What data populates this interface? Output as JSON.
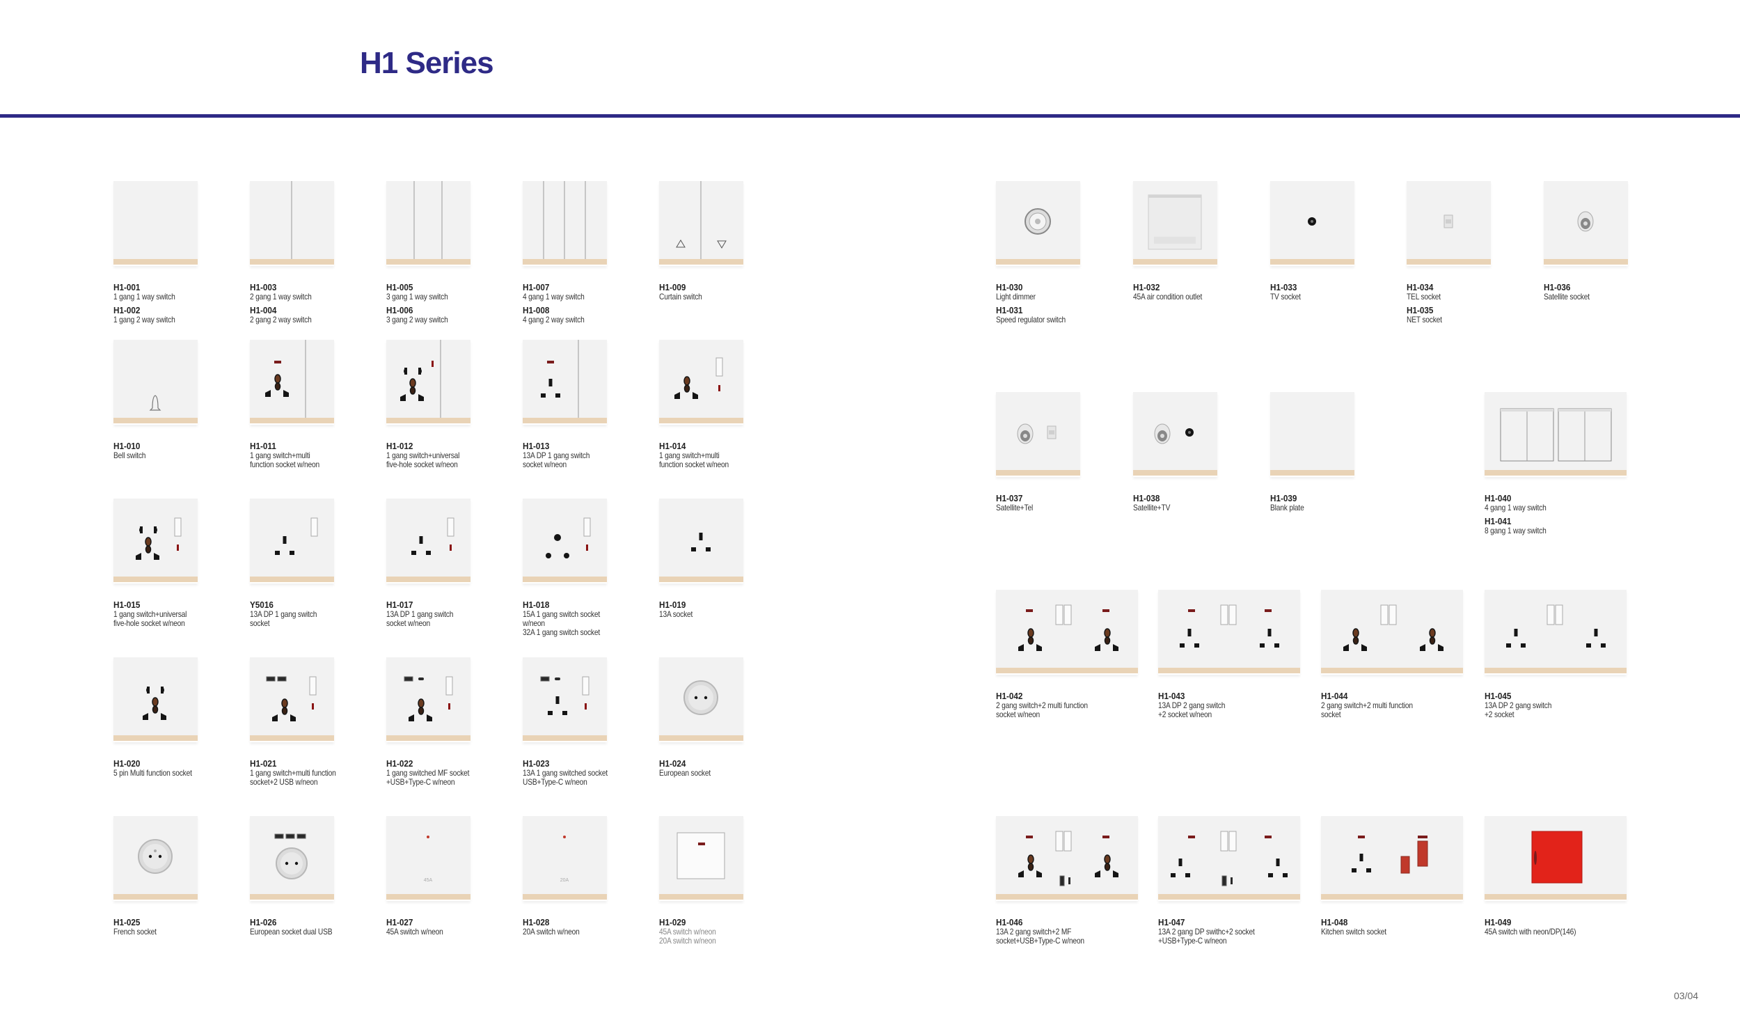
{
  "header": {
    "title": "H1 Series"
  },
  "footer": {
    "page": "03/04"
  },
  "colors": {
    "accent": "#2e2a86",
    "plate": "#f2f2f2",
    "plate_base": "#e9d3b6",
    "neon": "#7a1c1c",
    "red_switch": "#e2231a"
  },
  "products": [
    {
      "plate": "gang1",
      "labels": [
        {
          "code": "H1-001",
          "desc": "1 gang 1 way switch"
        },
        {
          "code": "H1-002",
          "desc": "1 gang 2 way switch"
        }
      ]
    },
    {
      "plate": "gang2",
      "labels": [
        {
          "code": "H1-003",
          "desc": "2 gang 1 way switch"
        },
        {
          "code": "H1-004",
          "desc": "2 gang 2 way switch"
        }
      ]
    },
    {
      "plate": "gang3",
      "labels": [
        {
          "code": "H1-005",
          "desc": "3 gang 1 way switch"
        },
        {
          "code": "H1-006",
          "desc": "3 gang 2 way switch"
        }
      ]
    },
    {
      "plate": "gang4",
      "labels": [
        {
          "code": "H1-007",
          "desc": "4 gang 1 way switch"
        },
        {
          "code": "H1-008",
          "desc": "4 gang 2 way switch"
        }
      ]
    },
    {
      "plate": "curtain",
      "labels": [
        {
          "code": "H1-009",
          "desc": "Curtain switch"
        }
      ]
    },
    {
      "plate": "bell",
      "labels": [
        {
          "code": "H1-010",
          "desc": "Bell switch"
        }
      ]
    },
    {
      "plate": "sw-mf",
      "labels": [
        {
          "code": "H1-011",
          "desc": "1 gang switch+multi\nfunction socket w/neon"
        }
      ]
    },
    {
      "plate": "sw-univ5",
      "labels": [
        {
          "code": "H1-012",
          "desc": "1 gang switch+universal\nfive-hole socket w/neon"
        }
      ]
    },
    {
      "plate": "sw-uk",
      "labels": [
        {
          "code": "H1-013",
          "desc": "13A DP 1 gang switch\nsocket w/neon"
        }
      ]
    },
    {
      "plate": "mf-rocker",
      "labels": [
        {
          "code": "H1-014",
          "desc": "1 gang switch+multi\nfunction socket w/neon"
        }
      ]
    },
    {
      "plate": "univ5-rocker",
      "labels": [
        {
          "code": "H1-015",
          "desc": "1 gang switch+universal\nfive-hole socket w/neon"
        }
      ]
    },
    {
      "plate": "uk-rocker-noneon",
      "labels": [
        {
          "code": "Y5016",
          "desc": "13A DP 1 gang switch\nsocket"
        }
      ]
    },
    {
      "plate": "uk-rocker",
      "labels": [
        {
          "code": "H1-017",
          "desc": "13A DP 1 gang switch\nsocket w/neon"
        }
      ]
    },
    {
      "plate": "round-rocker",
      "labels": [
        {
          "code": "H1-018",
          "desc": "15A 1 gang switch socket\nw/neon\n32A 1 gang switch socket"
        }
      ]
    },
    {
      "plate": "uk",
      "labels": [
        {
          "code": "H1-019",
          "desc": "13A socket"
        }
      ]
    },
    {
      "plate": "univ5",
      "labels": [
        {
          "code": "H1-020",
          "desc": "5 pin Multi function socket"
        }
      ]
    },
    {
      "plate": "usb2-mf",
      "labels": [
        {
          "code": "H1-021",
          "desc": "1 gang switch+multi function\nsocket+2 USB w/neon"
        }
      ]
    },
    {
      "plate": "usbc-mf",
      "labels": [
        {
          "code": "H1-022",
          "desc": "1 gang switched MF socket\n+USB+Type-C w/neon"
        }
      ]
    },
    {
      "plate": "usbc-uk",
      "labels": [
        {
          "code": "H1-023",
          "desc": "13A 1 gang switched socket\nUSB+Type-C w/neon"
        }
      ]
    },
    {
      "plate": "euro",
      "labels": [
        {
          "code": "H1-024",
          "desc": "European socket"
        }
      ]
    },
    {
      "plate": "french",
      "labels": [
        {
          "code": "H1-025",
          "desc": "French socket"
        }
      ]
    },
    {
      "plate": "euro-usb",
      "labels": [
        {
          "code": "H1-026",
          "desc": "European socket dual USB"
        }
      ]
    },
    {
      "plate": "amp",
      "plate_text": "45A",
      "labels": [
        {
          "code": "H1-027",
          "desc": "45A switch w/neon"
        }
      ]
    },
    {
      "plate": "amp",
      "plate_text": "20A",
      "labels": [
        {
          "code": "H1-028",
          "desc": "20A switch w/neon"
        }
      ]
    },
    {
      "plate": "big-rocker",
      "labels": [
        {
          "code": "H1-029",
          "desc": "45A switch w/neon\n20A switch w/neon",
          "light": true
        }
      ]
    },
    {
      "plate": "dimmer",
      "labels": [
        {
          "code": "H1-030",
          "desc": "Light dimmer"
        },
        {
          "code": "H1-031",
          "desc": "Speed regulator switch"
        }
      ]
    },
    {
      "plate": "ac",
      "labels": [
        {
          "code": "H1-032",
          "desc": "45A air condition outlet"
        }
      ]
    },
    {
      "plate": "tv",
      "labels": [
        {
          "code": "H1-033",
          "desc": "TV socket"
        }
      ]
    },
    {
      "plate": "tel",
      "labels": [
        {
          "code": "H1-034",
          "desc": "TEL socket"
        },
        {
          "code": "H1-035",
          "desc": "NET socket"
        }
      ]
    },
    {
      "plate": "sat",
      "labels": [
        {
          "code": "H1-036",
          "desc": "Satellite socket"
        }
      ]
    },
    {
      "plate": "sat-tel",
      "labels": [
        {
          "code": "H1-037",
          "desc": "Satellite+Tel"
        }
      ]
    },
    {
      "plate": "sat-tv",
      "labels": [
        {
          "code": "H1-038",
          "desc": "Satellite+TV"
        }
      ]
    },
    {
      "plate": "blank",
      "labels": [
        {
          "code": "H1-039",
          "desc": "Blank plate"
        }
      ]
    },
    {
      "plate": "wide-gang4",
      "labels": [
        {
          "code": "H1-040",
          "desc": "4 gang 1 way switch"
        },
        {
          "code": "H1-041",
          "desc": "8 gang 1 way switch"
        }
      ]
    },
    {
      "plate": "wide-mf-neon",
      "labels": [
        {
          "code": "H1-042",
          "desc": "2 gang switch+2 multi function\nsocket w/neon"
        }
      ]
    },
    {
      "plate": "wide-uk-neon",
      "labels": [
        {
          "code": "H1-043",
          "desc": "13A DP 2 gang switch\n+2 socket w/neon"
        }
      ]
    },
    {
      "plate": "wide-mf",
      "labels": [
        {
          "code": "H1-044",
          "desc": "2 gang switch+2 multi function\nsocket"
        }
      ]
    },
    {
      "plate": "wide-uk",
      "labels": [
        {
          "code": "H1-045",
          "desc": "13A DP 2 gang switch\n+2 socket"
        }
      ]
    },
    {
      "plate": "wide-mf-usb",
      "labels": [
        {
          "code": "H1-046",
          "desc": "13A 2 gang switch+2 MF\nsocket+USB+Type-C w/neon"
        }
      ]
    },
    {
      "plate": "wide-uk-usb",
      "labels": [
        {
          "code": "H1-047",
          "desc": "13A 2 gang DP swithc+2 socket\n+USB+Type-C w/neon"
        }
      ]
    },
    {
      "plate": "wide-kitchen",
      "labels": [
        {
          "code": "H1-048",
          "desc": "Kitchen switch socket"
        }
      ]
    },
    {
      "plate": "wide-red",
      "labels": [
        {
          "code": "H1-049",
          "desc": "45A switch with neon/DP(146)"
        }
      ]
    }
  ]
}
